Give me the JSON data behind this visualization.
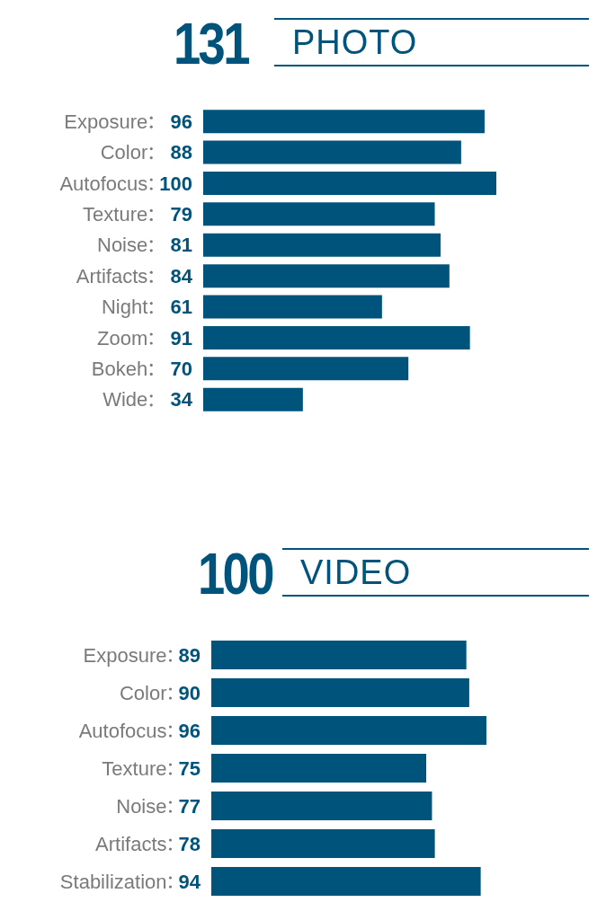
{
  "chart_data": [
    {
      "type": "bar",
      "orientation": "horizontal",
      "title": "PHOTO",
      "annotations": [
        "131"
      ],
      "categories": [
        "Exposure",
        "Color",
        "Autofocus",
        "Texture",
        "Noise",
        "Artifacts",
        "Night",
        "Zoom",
        "Bokeh",
        "Wide"
      ],
      "values": [
        96,
        88,
        100,
        79,
        81,
        84,
        61,
        91,
        70,
        34
      ],
      "color": "#00537a",
      "data_labels": true
    },
    {
      "type": "bar",
      "orientation": "horizontal",
      "title": "VIDEO",
      "annotations": [
        "100"
      ],
      "categories": [
        "Exposure",
        "Color",
        "Autofocus",
        "Texture",
        "Noise",
        "Artifacts",
        "Stabilization"
      ],
      "values": [
        89,
        90,
        96,
        75,
        77,
        78,
        94
      ],
      "color": "#00537a",
      "data_labels": true
    }
  ]
}
